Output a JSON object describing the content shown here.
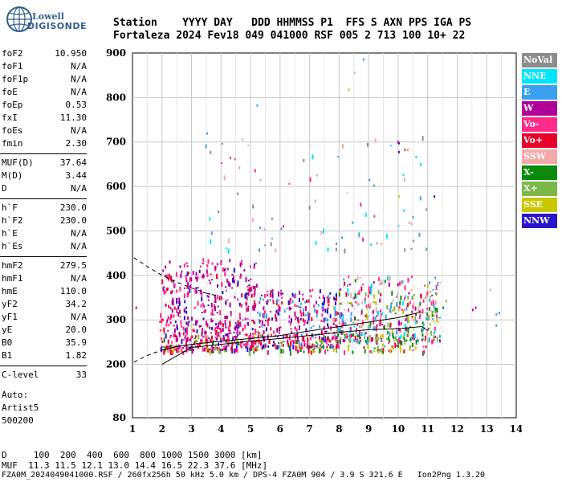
{
  "logo": {
    "line1": "Lowell",
    "line2": "DIGISONDE"
  },
  "header": {
    "line1": "Station    YYYY DAY   DDD HHMMSS P1  FFS S AXN PPS IGA PS",
    "line2": "Fortaleza 2024 Fev18 049 041000 RSF 005 2 713 100 10+ 22"
  },
  "params": [
    {
      "name": "foF2",
      "value": "10.950"
    },
    {
      "name": "foF1",
      "value": "N/A"
    },
    {
      "name": "foF1p",
      "value": "N/A"
    },
    {
      "name": "foE",
      "value": "N/A"
    },
    {
      "name": "foEp",
      "value": "0.53"
    },
    {
      "name": "fxI",
      "value": "11.30"
    },
    {
      "name": "foEs",
      "value": "N/A"
    },
    {
      "name": "fmin",
      "value": "2.30"
    },
    {
      "name": "MUF(D)",
      "value": "37.64"
    },
    {
      "name": "M(D)",
      "value": "3.44"
    },
    {
      "name": "D",
      "value": "N/A"
    },
    {
      "name": "h`F",
      "value": "230.0"
    },
    {
      "name": "h`F2",
      "value": "230.0"
    },
    {
      "name": "h`E",
      "value": "N/A"
    },
    {
      "name": "h`Es",
      "value": "N/A"
    },
    {
      "name": "hmF2",
      "value": "279.5"
    },
    {
      "name": "hmF1",
      "value": "N/A"
    },
    {
      "name": "hmE",
      "value": "110.0"
    },
    {
      "name": "yF2",
      "value": "34.2"
    },
    {
      "name": "yF1",
      "value": "N/A"
    },
    {
      "name": "yE",
      "value": "20.0"
    },
    {
      "name": "B0",
      "value": "35.9"
    },
    {
      "name": "B1",
      "value": "1.82"
    },
    {
      "name": "C-level",
      "value": "33"
    }
  ],
  "auto_info": [
    "Auto:",
    "Artist5",
    "500200"
  ],
  "legend": [
    {
      "label": "NoVal",
      "color": "#8c8c8c"
    },
    {
      "label": "NNE",
      "color": "#00e5ff"
    },
    {
      "label": "E",
      "color": "#3aa0ef"
    },
    {
      "label": "W",
      "color": "#b0009a"
    },
    {
      "label": "Vo-",
      "color": "#ff2a8a"
    },
    {
      "label": "Vo+",
      "color": "#e8002a"
    },
    {
      "label": "SSW",
      "color": "#f4a8a8"
    },
    {
      "label": "X-",
      "color": "#0a8a0a"
    },
    {
      "label": "X+",
      "color": "#7ab848"
    },
    {
      "label": "SSE",
      "color": "#c8c800"
    },
    {
      "label": "NNW",
      "color": "#2a14c8"
    }
  ],
  "bottom": {
    "d_line": "D     100  200  400  600  800 1000 1500 3000 [km]",
    "muf_line": "MUF  11.3 11.5 12.1 13.0 14.4 16.5 22.3 37.6 [MHz]",
    "file_line": "FZA0M_2024049041000.RSF / 260fx256h 50 kHz 5.0 km / DPS-4 FZA0M 904 / 3.9 S 321.6 E   Ion2Png 1.3.20"
  },
  "chart_data": {
    "type": "scatter",
    "xlim": [
      1,
      14
    ],
    "ylim": [
      80,
      900
    ],
    "x_ticks": [
      1,
      2,
      3,
      4,
      5,
      6,
      7,
      8,
      9,
      10,
      11,
      12,
      13,
      14
    ],
    "y_ticks": [
      80,
      200,
      300,
      400,
      500,
      600,
      700,
      800,
      900
    ],
    "grid": true,
    "o_trace": [
      [
        1.05,
        205
      ],
      [
        1.5,
        220
      ],
      [
        2.0,
        232
      ],
      [
        2.5,
        240
      ],
      [
        3,
        245
      ],
      [
        4,
        252
      ],
      [
        5,
        258
      ],
      [
        6,
        265
      ],
      [
        7,
        275
      ],
      [
        8,
        285
      ],
      [
        9,
        295
      ],
      [
        10,
        305
      ],
      [
        10.8,
        318
      ]
    ],
    "x_trace": [
      [
        2.0,
        200
      ],
      [
        3,
        238
      ],
      [
        4,
        245
      ],
      [
        5,
        252
      ],
      [
        6,
        258
      ],
      [
        7,
        265
      ],
      [
        8,
        272
      ],
      [
        9,
        278
      ],
      [
        10,
        280
      ],
      [
        10.8,
        285
      ],
      [
        11.0,
        276
      ]
    ],
    "dashed_fit": [
      [
        1.05,
        440
      ],
      [
        1.5,
        420
      ],
      [
        2,
        400
      ],
      [
        2.5,
        385
      ],
      [
        3,
        372
      ],
      [
        3.5,
        360
      ],
      [
        4,
        352
      ]
    ],
    "clusters": [
      {
        "x": [
          1.9,
          5.2
        ],
        "y": [
          235,
          440
        ],
        "n": 520,
        "colors": [
          "W",
          "Vo-",
          "Vo+",
          "NNW",
          "W",
          "Vo-"
        ]
      },
      {
        "x": [
          5.2,
          8.0
        ],
        "y": [
          240,
          370
        ],
        "n": 300,
        "colors": [
          "Vo-",
          "Vo+",
          "W",
          "NNW",
          "E"
        ]
      },
      {
        "x": [
          7.8,
          11.4
        ],
        "y": [
          255,
          400
        ],
        "n": 420,
        "colors": [
          "Vo-",
          "Vo+",
          "E",
          "NNE",
          "X-",
          "X+",
          "SSE",
          "SSW",
          "W"
        ]
      },
      {
        "x": [
          2.0,
          11.0
        ],
        "y": [
          230,
          270
        ],
        "n": 200,
        "colors": [
          "Vo+",
          "X-",
          "X+",
          "SSE",
          "Vo-"
        ]
      },
      {
        "x": [
          3.4,
          11.0
        ],
        "y": [
          460,
          720
        ],
        "n": 80,
        "colors": [
          "E",
          "NNE",
          "Vo-",
          "SSW",
          "NoVal"
        ]
      }
    ],
    "isolated": [
      {
        "x": 3.5,
        "y": 722,
        "c": "E"
      },
      {
        "x": 5.2,
        "y": 785,
        "c": "E"
      },
      {
        "x": 8.8,
        "y": 888,
        "c": "E"
      },
      {
        "x": 8.3,
        "y": 820,
        "c": "SSE"
      },
      {
        "x": 8.5,
        "y": 858,
        "c": "SSW"
      },
      {
        "x": 10.0,
        "y": 700,
        "c": "NNW"
      },
      {
        "x": 10.0,
        "y": 680,
        "c": "NNW"
      },
      {
        "x": 10.2,
        "y": 685,
        "c": "Vo-"
      },
      {
        "x": 10.3,
        "y": 685,
        "c": "SSE"
      },
      {
        "x": 10.0,
        "y": 580,
        "c": "SSE"
      },
      {
        "x": 11.2,
        "y": 580,
        "c": "NNW"
      },
      {
        "x": 12.5,
        "y": 325,
        "c": "W"
      },
      {
        "x": 12.6,
        "y": 330,
        "c": "W"
      },
      {
        "x": 13.1,
        "y": 370,
        "c": "SSW"
      },
      {
        "x": 13.3,
        "y": 315,
        "c": "E"
      },
      {
        "x": 13.4,
        "y": 318,
        "c": "E"
      },
      {
        "x": 13.3,
        "y": 290,
        "c": "E"
      },
      {
        "x": 1.1,
        "y": 330,
        "c": "W"
      },
      {
        "x": 11.5,
        "y": 330,
        "c": "X-"
      },
      {
        "x": 11.6,
        "y": 345,
        "c": "X+"
      },
      {
        "x": 9.0,
        "y": 617,
        "c": "E"
      },
      {
        "x": 5.7,
        "y": 530,
        "c": "E"
      },
      {
        "x": 5.3,
        "y": 510,
        "c": "E"
      }
    ]
  }
}
